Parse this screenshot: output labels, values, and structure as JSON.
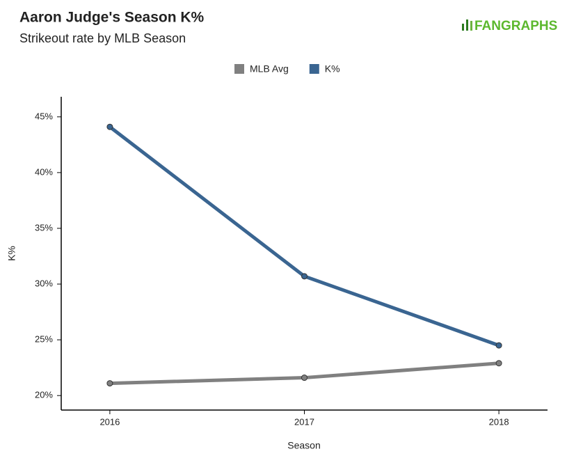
{
  "chart_data": {
    "type": "line",
    "title": "Aaron Judge's Season K%",
    "subtitle": "Strikeout rate by MLB Season",
    "logo": "FANGRAPHS",
    "x_label": "Season",
    "y_label": "K%",
    "x": [
      2016,
      2017,
      2018
    ],
    "xlim": [
      2015.75,
      2018.25
    ],
    "xticks": [
      2016,
      2017,
      2018
    ],
    "ylim": [
      18.7,
      46.8
    ],
    "yticks": [
      {
        "value": 20,
        "label": "20%"
      },
      {
        "value": 25,
        "label": "25%"
      },
      {
        "value": 30,
        "label": "30%"
      },
      {
        "value": 35,
        "label": "35%"
      },
      {
        "value": 40,
        "label": "40%"
      },
      {
        "value": 45,
        "label": "45%"
      }
    ],
    "series": [
      {
        "name": "MLB Avg",
        "color": "#808080",
        "values": [
          21.1,
          21.6,
          22.9
        ]
      },
      {
        "name": "K%",
        "color": "#3a6591",
        "values": [
          44.1,
          30.7,
          24.5
        ]
      }
    ]
  }
}
